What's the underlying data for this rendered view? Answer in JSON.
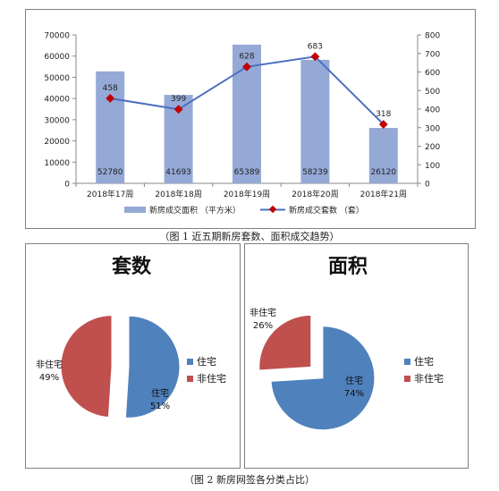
{
  "caption1": "（图 1 近五期新房套数、面积成交趋势）",
  "caption2": "（图 2 新房网签各分类占比）",
  "chart_data": [
    {
      "type": "bar+line",
      "categories": [
        "2018年17周",
        "2018年18周",
        "2018年19周",
        "2018年20周",
        "2018年21周"
      ],
      "series": [
        {
          "name": "新房成交面积 （平方米）",
          "type": "bar",
          "axis": "left",
          "values": [
            52780,
            41693,
            65389,
            58239,
            26120
          ],
          "color": "#95a9d6"
        },
        {
          "name": "新房成交套数 （套）",
          "type": "line",
          "axis": "right",
          "values": [
            458,
            399,
            628,
            683,
            318
          ],
          "color": "#4a6fc0",
          "marker_color": "#c00000"
        }
      ],
      "y_left": {
        "ylim": [
          0,
          70000
        ],
        "ticks": [
          "0",
          "10000",
          "20000",
          "30000",
          "40000",
          "50000",
          "60000",
          "70000"
        ]
      },
      "y_right": {
        "ylim": [
          0,
          800
        ],
        "ticks": [
          "0",
          "100",
          "200",
          "300",
          "400",
          "500",
          "600",
          "700",
          "800"
        ]
      },
      "legend": "bottom"
    },
    {
      "type": "pie",
      "title": "套数",
      "slices": [
        {
          "label": "住宅",
          "percent": "51%",
          "value": 51,
          "color": "#4f81bd"
        },
        {
          "label": "非住宅",
          "percent": "49%",
          "value": 49,
          "color": "#c0504d"
        }
      ],
      "legend": [
        "住宅",
        "非住宅"
      ]
    },
    {
      "type": "pie",
      "title": "面积",
      "slices": [
        {
          "label": "住宅",
          "percent": "74%",
          "value": 74,
          "color": "#4f81bd"
        },
        {
          "label": "非住宅",
          "percent": "26%",
          "value": 26,
          "color": "#c0504d"
        }
      ],
      "legend": [
        "住宅",
        "非住宅"
      ]
    }
  ]
}
